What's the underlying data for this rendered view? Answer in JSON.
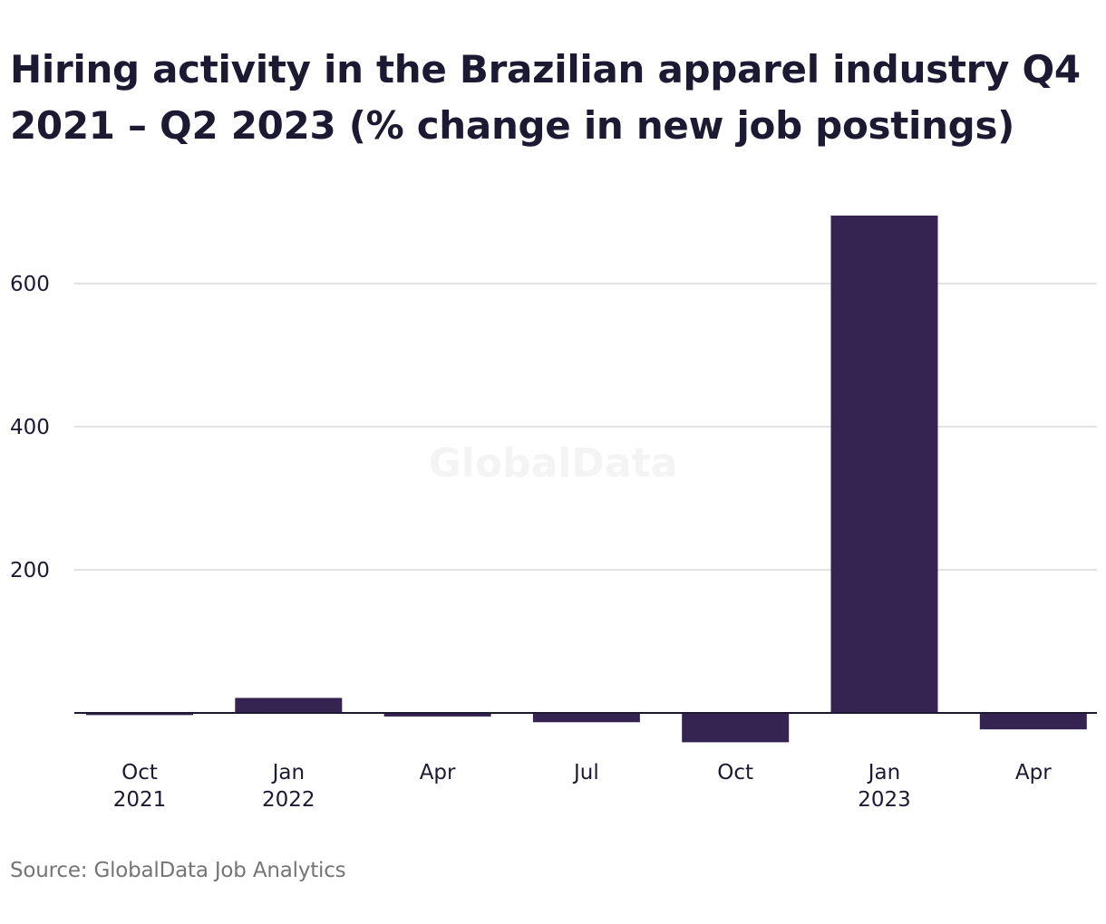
{
  "source": "Source: GlobalData Job Analytics",
  "watermark": "GlobalData",
  "colors": {
    "bar": "#352451",
    "grid": "#d9d9d9",
    "baseline": "#1c1a33",
    "text": "#1c1a33",
    "muted": "#757575"
  },
  "chart_data": {
    "type": "bar",
    "title": "Hiring activity in the Brazilian apparel industry Q4 2021 – Q2 2023 (% change in new job postings)",
    "xlabel": "",
    "ylabel": "",
    "categories": [
      [
        "Oct",
        "2021"
      ],
      [
        "Jan",
        "2022"
      ],
      [
        "Apr"
      ],
      [
        "Jul"
      ],
      [
        "Oct"
      ],
      [
        "Jan",
        "2023"
      ],
      [
        "Apr"
      ]
    ],
    "values": [
      -3,
      21,
      -5,
      -13,
      -41,
      695,
      -23
    ],
    "yticks": [
      200,
      400,
      600
    ],
    "ylim": [
      -60,
      760
    ],
    "grid": true,
    "legend": "none"
  }
}
